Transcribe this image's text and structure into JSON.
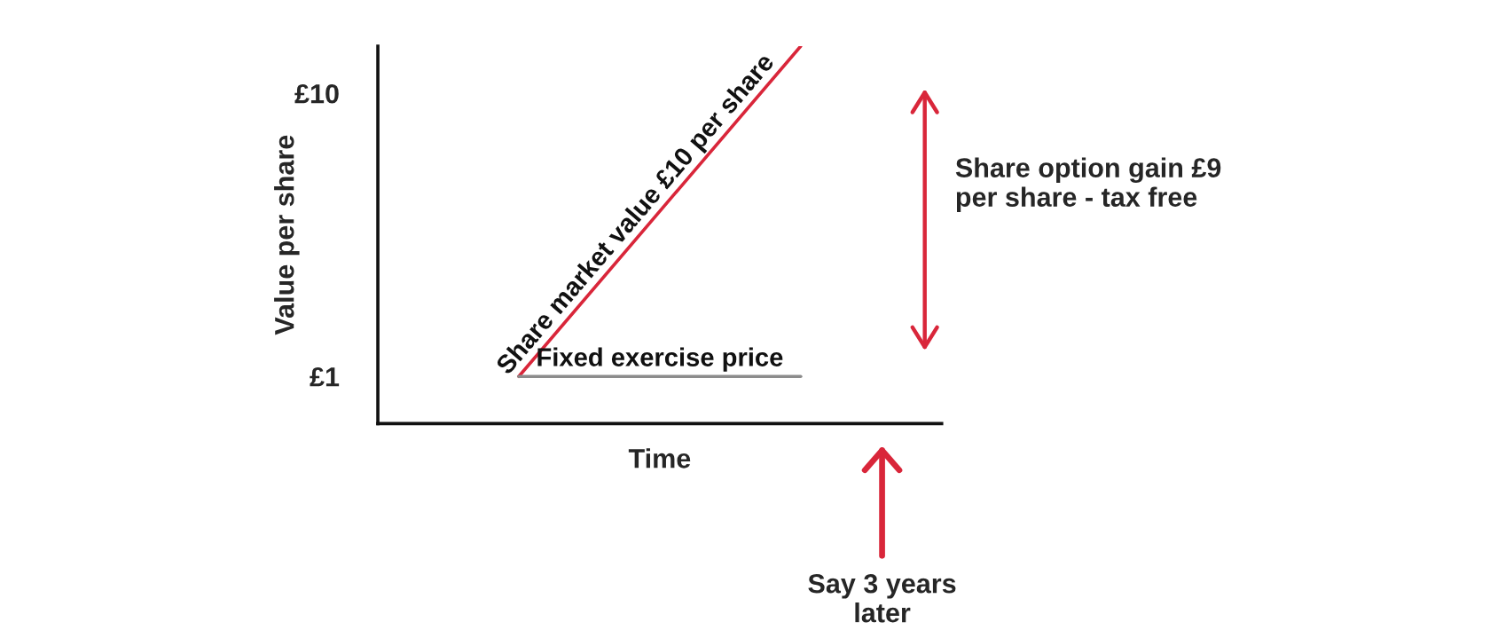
{
  "chart_data": {
    "type": "line",
    "xlabel": "Time",
    "ylabel": "Value per share",
    "categories": [
      null,
      null
    ],
    "series": [
      {
        "name": "Share market value £10 per share",
        "color": "#d9263a",
        "values": [
          1,
          11.5
        ]
      },
      {
        "name": "Fixed exercise price",
        "color": "#8c8c8c",
        "values": [
          1,
          1
        ]
      }
    ],
    "ylim": [
      -0.5,
      11.5
    ],
    "yticks": [
      {
        "value": 1,
        "label": "£1"
      },
      {
        "value": 10,
        "label": "£10"
      }
    ],
    "tick_labels": "y",
    "grid": false,
    "legend": false,
    "marker": "none",
    "line_style": "solid",
    "annotations": [
      "Share option gain £9 per share - tax free",
      "Say 3 years later"
    ]
  }
}
